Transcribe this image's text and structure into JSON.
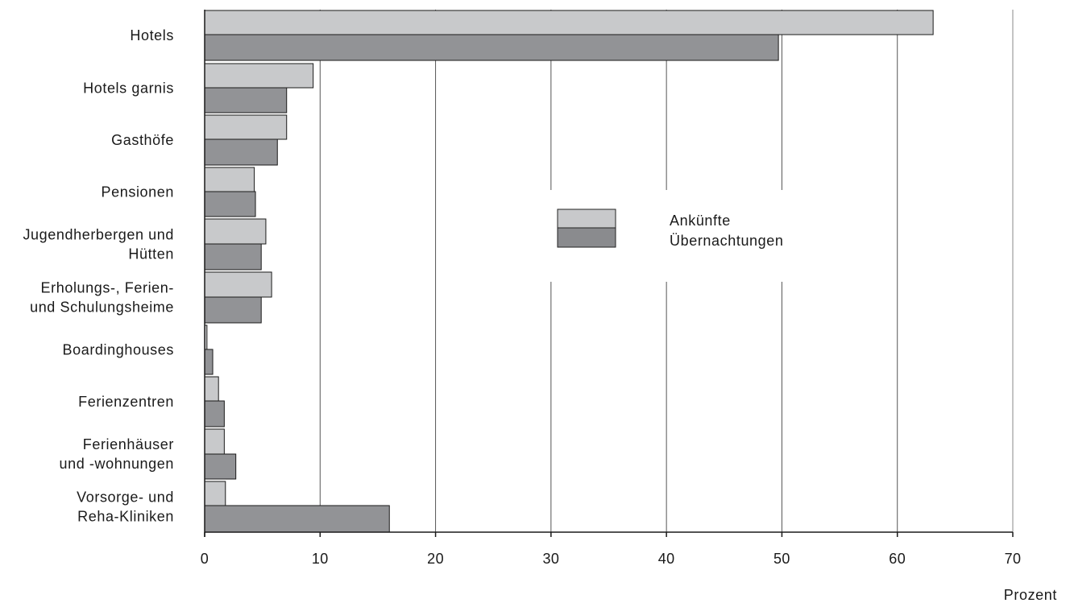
{
  "chart_data": {
    "type": "bar",
    "orientation": "horizontal",
    "categories": [
      [
        "Hotels"
      ],
      [
        "Hotels garnis"
      ],
      [
        "Gasthöfe"
      ],
      [
        "Pensionen"
      ],
      [
        "Jugendherbergen und",
        "Hütten"
      ],
      [
        "Erholungs-, Ferien-",
        "und Schulungsheime"
      ],
      [
        "Boardinghouses"
      ],
      [
        "Ferienzentren"
      ],
      [
        "Ferienhäuser",
        "und -wohnungen"
      ],
      [
        "Vorsorge- und",
        "Reha-Kliniken"
      ]
    ],
    "series": [
      {
        "name": "Ankünfte",
        "color": "#c8c9cb",
        "values": [
          63.1,
          9.4,
          7.1,
          4.3,
          5.3,
          5.8,
          0.2,
          1.2,
          1.7,
          1.8
        ]
      },
      {
        "name": "Übernachtungen",
        "color": "#929396",
        "values": [
          49.7,
          7.1,
          6.3,
          4.4,
          4.9,
          4.9,
          0.7,
          1.7,
          2.7,
          16.0
        ]
      }
    ],
    "xlabel": "Prozent",
    "xlim": [
      0,
      70
    ],
    "xticks": [
      "0",
      "10",
      "20",
      "30",
      "40",
      "50",
      "60",
      "70"
    ],
    "grid": true,
    "legend": "center-right"
  }
}
